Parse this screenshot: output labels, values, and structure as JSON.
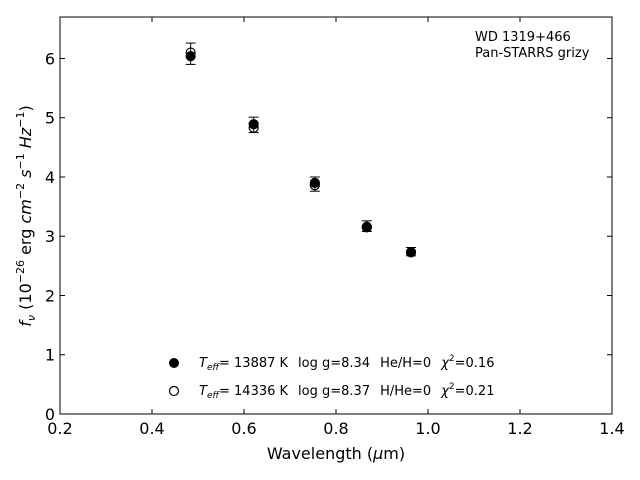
{
  "chart_data": {
    "type": "scatter",
    "title": "",
    "xlabel": "Wavelength (μm)",
    "ylabel": "f_ν (10^-26 erg cm^-2 s^-1 Hz^-1)",
    "xlim": [
      0.2,
      1.4
    ],
    "ylim": [
      0,
      6.7
    ],
    "xticks": [
      0.2,
      0.4,
      0.6,
      0.8,
      1.0,
      1.2,
      1.4
    ],
    "xtick_labels": [
      "0.2",
      "0.4",
      "0.6",
      "0.8",
      "1.0",
      "1.2",
      "1.4"
    ],
    "yticks": [
      0,
      1,
      2,
      3,
      4,
      5,
      6
    ],
    "ytick_labels": [
      "0",
      "1",
      "2",
      "3",
      "4",
      "5",
      "6"
    ],
    "grid": false,
    "annotation_lines": [
      "WD 1319+466",
      "Pan-STARRS grizy"
    ],
    "observed": {
      "x": [
        0.484,
        0.621,
        0.754,
        0.867,
        0.963
      ],
      "y": [
        6.08,
        4.88,
        3.88,
        3.17,
        2.74
      ],
      "yerr": [
        0.18,
        0.13,
        0.12,
        0.09,
        0.07
      ]
    },
    "series": [
      {
        "name": "T_eff= 13887 K  log g=8.34  He/H=0  χ²=0.16",
        "marker": "filled-circle",
        "x": [
          0.484,
          0.621,
          0.754,
          0.867,
          0.963
        ],
        "y": [
          6.04,
          4.89,
          3.9,
          3.16,
          2.73
        ]
      },
      {
        "name": "T_eff= 14336 K  log g=8.37  H/He=0  χ²=0.21",
        "marker": "open-circle",
        "x": [
          0.484,
          0.621,
          0.754,
          0.867,
          0.963
        ],
        "y": [
          6.1,
          4.83,
          3.86,
          3.15,
          2.73
        ]
      }
    ],
    "legend": {
      "placement": "lower-center",
      "entries": [
        {
          "teff_prefix": "T",
          "teff_sub": "eff",
          "teff_value": "= 13887 K",
          "logg": "log g=8.34",
          "comp": "He/H=0",
          "chi_prefix": "χ",
          "chi_value": "=0.16"
        },
        {
          "teff_prefix": "T",
          "teff_sub": "eff",
          "teff_value": "= 14336 K",
          "logg": "log g=8.37",
          "comp": "H/He=0",
          "chi_prefix": "χ",
          "chi_value": "=0.21"
        }
      ]
    }
  }
}
